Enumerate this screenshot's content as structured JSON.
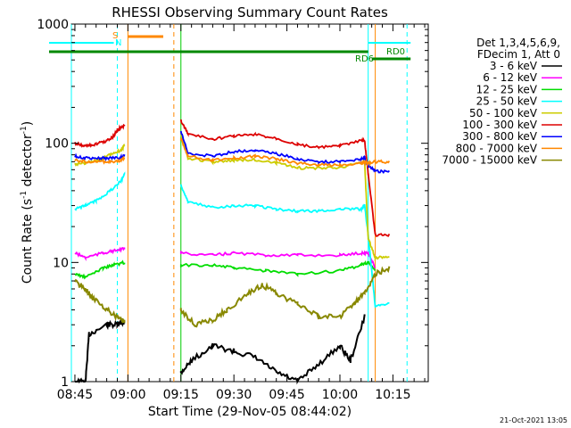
{
  "chart_data": {
    "type": "line",
    "title": "RHESSI Observing Summary Count Rates",
    "xlabel": "Start Time (29-Nov-05 08:44:02)",
    "ylabel_main": "Count Rate (s",
    "ylabel_sup1": "-1",
    "ylabel_mid": " detector",
    "ylabel_sup2": "-1",
    "ylabel_end": ")",
    "y_scale": "log",
    "ylim": [
      1,
      1000
    ],
    "xlim_minutes": [
      0,
      101
    ],
    "y_ticks": [
      {
        "v": 1,
        "label": "1"
      },
      {
        "v": 10,
        "label": "10"
      },
      {
        "v": 100,
        "label": "100"
      },
      {
        "v": 1000,
        "label": "1000"
      }
    ],
    "x_ticks": [
      {
        "m": 1,
        "label": "08:45"
      },
      {
        "m": 16,
        "label": "09:00"
      },
      {
        "m": 31,
        "label": "09:15"
      },
      {
        "m": 46,
        "label": "09:30"
      },
      {
        "m": 61,
        "label": "09:45"
      },
      {
        "m": 76,
        "label": "10:00"
      },
      {
        "m": 91,
        "label": "10:15"
      }
    ],
    "legend": {
      "header1": "Det 1,3,4,5,6,9,",
      "header2": "FDecim 1, Att 0",
      "entries": [
        {
          "label": "3 - 6 keV",
          "color": "#000000"
        },
        {
          "label": "6 - 12 keV",
          "color": "#ff00ff"
        },
        {
          "label": "12 - 25 keV",
          "color": "#00dd00"
        },
        {
          "label": "25 - 50 keV",
          "color": "#00ffff"
        },
        {
          "label": "50 - 100 keV",
          "color": "#cccc00"
        },
        {
          "label": "100 - 300 keV",
          "color": "#dd0000"
        },
        {
          "label": "300 - 800 keV",
          "color": "#0000ff"
        },
        {
          "label": "800 - 7000 keV",
          "color": "#ff8800"
        },
        {
          "label": "7000 - 15000 keV",
          "color": "#888800"
        }
      ]
    },
    "annotations": {
      "s": "S",
      "n": "N",
      "rd6": "RD6",
      "rd0": "RD0"
    },
    "markers": {
      "cyan": "#00ffff",
      "orange": "#ff8800",
      "green": "#008800"
    },
    "series": [
      {
        "band": "3 - 6 keV",
        "color": "#000000",
        "points": [
          [
            1,
            1
          ],
          [
            4,
            1
          ],
          [
            5,
            2.5
          ],
          [
            10,
            3
          ],
          [
            13,
            3
          ],
          [
            15,
            3.2
          ],
          [
            31,
            1.2
          ],
          [
            34,
            1.5
          ],
          [
            40,
            2
          ],
          [
            46,
            1.8
          ],
          [
            52,
            1.6
          ],
          [
            58,
            1.2
          ],
          [
            64,
            1
          ],
          [
            70,
            1.4
          ],
          [
            76,
            2
          ],
          [
            79,
            1.5
          ],
          [
            83,
            3.5
          ]
        ]
      },
      {
        "band": "6 - 12 keV",
        "color": "#ff00ff",
        "points": [
          [
            1,
            12
          ],
          [
            4,
            11
          ],
          [
            9,
            12
          ],
          [
            12,
            12.5
          ],
          [
            15,
            13
          ],
          [
            31,
            12
          ],
          [
            40,
            11.5
          ],
          [
            46,
            12
          ],
          [
            55,
            11.5
          ],
          [
            64,
            11.5
          ],
          [
            76,
            11.5
          ],
          [
            82,
            12
          ],
          [
            84,
            12
          ],
          [
            86,
            9
          ]
        ]
      },
      {
        "band": "12 - 25 keV",
        "color": "#00dd00",
        "points": [
          [
            1,
            8
          ],
          [
            4,
            7.5
          ],
          [
            9,
            9
          ],
          [
            12,
            9.5
          ],
          [
            15,
            10
          ],
          [
            31,
            9.5
          ],
          [
            40,
            9.5
          ],
          [
            46,
            9
          ],
          [
            55,
            8.5
          ],
          [
            64,
            8
          ],
          [
            76,
            8.5
          ],
          [
            82,
            9.5
          ],
          [
            84,
            10
          ],
          [
            86,
            8.5
          ]
        ]
      },
      {
        "band": "25 - 50 keV",
        "color": "#00ffff",
        "points": [
          [
            1,
            28
          ],
          [
            4,
            30
          ],
          [
            7,
            33
          ],
          [
            11,
            40
          ],
          [
            14,
            48
          ],
          [
            15,
            55
          ],
          [
            31,
            45
          ],
          [
            33,
            32
          ],
          [
            40,
            29
          ],
          [
            46,
            30
          ],
          [
            52,
            30
          ],
          [
            58,
            28
          ],
          [
            64,
            27
          ],
          [
            70,
            27
          ],
          [
            76,
            28
          ],
          [
            82,
            28
          ],
          [
            83,
            30
          ],
          [
            84,
            17
          ],
          [
            86,
            4.3
          ],
          [
            90,
            4.5
          ]
        ]
      },
      {
        "band": "50 - 100 keV",
        "color": "#cccc00",
        "points": [
          [
            1,
            67
          ],
          [
            4,
            68
          ],
          [
            8,
            72
          ],
          [
            11,
            80
          ],
          [
            14,
            88
          ],
          [
            15,
            95
          ],
          [
            31,
            120
          ],
          [
            33,
            75
          ],
          [
            40,
            70
          ],
          [
            46,
            72
          ],
          [
            52,
            73
          ],
          [
            58,
            68
          ],
          [
            64,
            62
          ],
          [
            70,
            62
          ],
          [
            76,
            63
          ],
          [
            82,
            68
          ],
          [
            83,
            70
          ],
          [
            84,
            16
          ],
          [
            86,
            11
          ],
          [
            90,
            11
          ]
        ]
      },
      {
        "band": "100 - 300 keV",
        "color": "#dd0000",
        "points": [
          [
            1,
            100
          ],
          [
            4,
            95
          ],
          [
            7,
            98
          ],
          [
            10,
            105
          ],
          [
            12,
            115
          ],
          [
            13,
            130
          ],
          [
            15,
            140
          ],
          [
            31,
            155
          ],
          [
            33,
            120
          ],
          [
            40,
            108
          ],
          [
            46,
            115
          ],
          [
            52,
            118
          ],
          [
            58,
            110
          ],
          [
            64,
            98
          ],
          [
            70,
            92
          ],
          [
            76,
            95
          ],
          [
            82,
            105
          ],
          [
            83,
            105
          ],
          [
            84,
            55
          ],
          [
            86,
            17
          ],
          [
            90,
            17
          ]
        ]
      },
      {
        "band": "300 - 800 keV",
        "color": "#0000ff",
        "points": [
          [
            1,
            78
          ],
          [
            4,
            75
          ],
          [
            8,
            75
          ],
          [
            11,
            75
          ],
          [
            14,
            76
          ],
          [
            15,
            80
          ],
          [
            31,
            125
          ],
          [
            33,
            82
          ],
          [
            40,
            78
          ],
          [
            46,
            85
          ],
          [
            52,
            88
          ],
          [
            58,
            82
          ],
          [
            64,
            74
          ],
          [
            70,
            70
          ],
          [
            76,
            70
          ],
          [
            82,
            74
          ],
          [
            83,
            76
          ],
          [
            84,
            65
          ],
          [
            86,
            58
          ],
          [
            90,
            58
          ]
        ]
      },
      {
        "band": "800 - 7000 keV",
        "color": "#ff8800",
        "points": [
          [
            1,
            72
          ],
          [
            4,
            70
          ],
          [
            8,
            70
          ],
          [
            11,
            70
          ],
          [
            14,
            72
          ],
          [
            15,
            75
          ],
          [
            31,
            110
          ],
          [
            33,
            78
          ],
          [
            40,
            72
          ],
          [
            46,
            75
          ],
          [
            52,
            78
          ],
          [
            58,
            74
          ],
          [
            64,
            68
          ],
          [
            70,
            66
          ],
          [
            76,
            66
          ],
          [
            82,
            68
          ],
          [
            83,
            70
          ],
          [
            84,
            68
          ],
          [
            86,
            70
          ],
          [
            90,
            70
          ]
        ]
      },
      {
        "band": "7000 - 15000 keV",
        "color": "#888800",
        "points": [
          [
            1,
            7
          ],
          [
            4,
            6
          ],
          [
            6,
            5
          ],
          [
            10,
            4
          ],
          [
            13,
            3.5
          ],
          [
            15,
            3.2
          ],
          [
            31,
            4
          ],
          [
            35,
            3
          ],
          [
            40,
            3.3
          ],
          [
            44,
            4
          ],
          [
            50,
            5.5
          ],
          [
            54,
            6.5
          ],
          [
            58,
            5.5
          ],
          [
            64,
            4.5
          ],
          [
            70,
            3.5
          ],
          [
            76,
            3.5
          ],
          [
            80,
            4.5
          ],
          [
            83,
            5.5
          ],
          [
            86,
            8
          ],
          [
            90,
            9
          ]
        ]
      }
    ]
  },
  "footer": {
    "date_stamp": "21-Oct-2021 13:05"
  }
}
